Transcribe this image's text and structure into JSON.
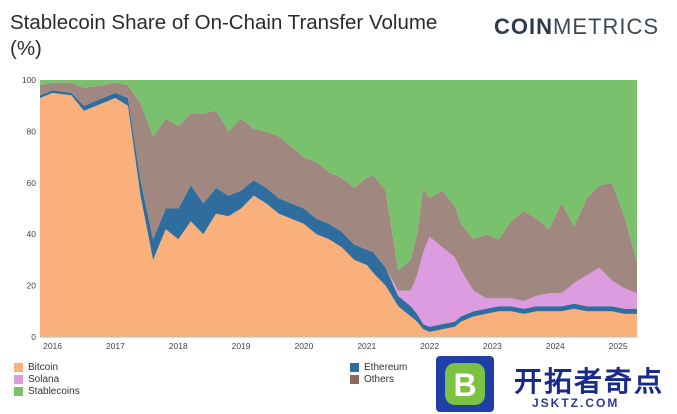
{
  "header": {
    "title": "Stablecoin Share of On-Chain Transfer Volume (%)",
    "brand_bold": "COIN",
    "brand_light": "METRICS"
  },
  "chart_data": {
    "type": "area",
    "stacked": true,
    "title": "Stablecoin Share of On-Chain Transfer Volume (%)",
    "xlabel": "",
    "ylabel": "",
    "ylim": [
      0,
      100
    ],
    "yticks": [
      0,
      20,
      40,
      60,
      80,
      100
    ],
    "xlim": [
      2015.8,
      2025.3
    ],
    "xticks": [
      2016,
      2017,
      2018,
      2019,
      2020,
      2021,
      2022,
      2023,
      2024,
      2025
    ],
    "grid": false,
    "legend_position": "bottom",
    "x": [
      2015.8,
      2016.0,
      2016.3,
      2016.5,
      2016.8,
      2017.0,
      2017.2,
      2017.4,
      2017.6,
      2017.8,
      2018.0,
      2018.2,
      2018.4,
      2018.6,
      2018.8,
      2019.0,
      2019.2,
      2019.4,
      2019.6,
      2019.8,
      2020.0,
      2020.2,
      2020.4,
      2020.6,
      2020.8,
      2021.0,
      2021.1,
      2021.3,
      2021.5,
      2021.7,
      2021.8,
      2021.9,
      2022.0,
      2022.2,
      2022.4,
      2022.5,
      2022.7,
      2022.9,
      2023.1,
      2023.3,
      2023.5,
      2023.7,
      2023.9,
      2024.1,
      2024.3,
      2024.5,
      2024.7,
      2024.9,
      2025.1,
      2025.3
    ],
    "series": [
      {
        "name": "Bitcoin",
        "color": "#f9b07a",
        "values": [
          93,
          95,
          94,
          88,
          91,
          93,
          90,
          55,
          30,
          42,
          38,
          45,
          40,
          48,
          47,
          50,
          55,
          52,
          48,
          46,
          44,
          40,
          38,
          35,
          30,
          28,
          25,
          20,
          12,
          8,
          6,
          3,
          2,
          3,
          4,
          6,
          8,
          9,
          10,
          10,
          9,
          10,
          10,
          10,
          11,
          10,
          10,
          10,
          9,
          9
        ]
      },
      {
        "name": "Ethereum",
        "color": "#2f6d9e",
        "values": [
          1,
          1,
          1,
          2,
          2,
          2,
          3,
          6,
          8,
          8,
          12,
          14,
          12,
          10,
          8,
          7,
          6,
          6,
          6,
          6,
          6,
          6,
          6,
          6,
          6,
          6,
          8,
          7,
          4,
          4,
          3,
          2,
          2,
          2,
          2,
          2,
          2,
          2,
          2,
          2,
          2,
          2,
          2,
          2,
          2,
          2,
          2,
          2,
          2,
          2
        ]
      },
      {
        "name": "Solana",
        "color": "#dd9ce0",
        "values": [
          0,
          0,
          0,
          0,
          0,
          0,
          0,
          0,
          0,
          0,
          0,
          0,
          0,
          0,
          0,
          0,
          0,
          0,
          0,
          0,
          0,
          0,
          0,
          0,
          0,
          0,
          0,
          0,
          2,
          6,
          15,
          28,
          35,
          30,
          25,
          18,
          8,
          4,
          3,
          3,
          3,
          4,
          5,
          5,
          8,
          12,
          15,
          10,
          8,
          6
        ]
      },
      {
        "name": "Others",
        "color": "#a08880",
        "values": [
          4,
          3,
          4,
          7,
          5,
          4,
          5,
          30,
          40,
          35,
          32,
          28,
          35,
          30,
          25,
          28,
          20,
          22,
          24,
          22,
          20,
          22,
          20,
          21,
          22,
          28,
          30,
          30,
          8,
          12,
          16,
          25,
          15,
          22,
          20,
          18,
          20,
          25,
          23,
          30,
          35,
          30,
          25,
          35,
          22,
          30,
          32,
          38,
          28,
          12
        ]
      },
      {
        "name": "Stablecoins",
        "color": "#79c16d",
        "values": [
          2,
          1,
          1,
          3,
          2,
          1,
          2,
          9,
          22,
          15,
          18,
          13,
          13,
          12,
          20,
          15,
          19,
          20,
          22,
          26,
          30,
          32,
          36,
          38,
          42,
          38,
          37,
          43,
          74,
          70,
          60,
          42,
          46,
          43,
          49,
          56,
          62,
          60,
          62,
          55,
          51,
          54,
          58,
          48,
          57,
          46,
          41,
          40,
          53,
          71
        ]
      }
    ]
  },
  "legend": {
    "items": [
      {
        "label": "Bitcoin",
        "color": "#f9b07a"
      },
      {
        "label": "Solana",
        "color": "#dd9ce0"
      },
      {
        "label": "Stablecoins",
        "color": "#79c16d"
      },
      {
        "label": "Ethereum",
        "color": "#2f6d9e"
      },
      {
        "label": "Others",
        "color": "#8a6a5e"
      }
    ]
  },
  "watermark": {
    "logo_letter": "B",
    "cn_text": "开拓者奇点",
    "url_text": "JSKTZ.COM"
  }
}
